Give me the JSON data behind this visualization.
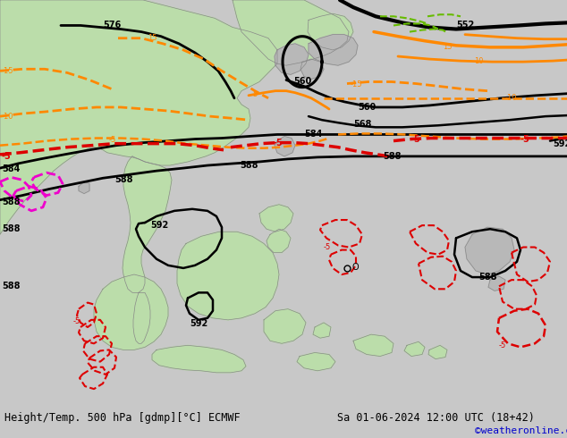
{
  "title_left": "Height/Temp. 500 hPa [gdmp][°C] ECMWF",
  "title_right": "Sa 01-06-2024 12:00 UTC (18+42)",
  "credit": "©weatheronline.co.uk",
  "credit_color": "#0000cc",
  "bg_color": "#c8c8c8",
  "land_green_color": "#bbddaa",
  "land_gray_color": "#b8b8b8",
  "ocean_color": "#dcdcdc",
  "sea_color": "#dcdcdc",
  "border_color": "#888888",
  "contour_black_color": "#000000",
  "contour_red_color": "#dd0000",
  "contour_orange_color": "#ff8800",
  "contour_green_color": "#66bb00",
  "contour_magenta_color": "#ee00cc",
  "figsize": [
    6.34,
    4.9
  ],
  "dpi": 100,
  "bottom_bar_height": 0.085,
  "bottom_bar_color": "#d0d0d0",
  "title_fontsize": 8.5,
  "credit_fontsize": 8
}
